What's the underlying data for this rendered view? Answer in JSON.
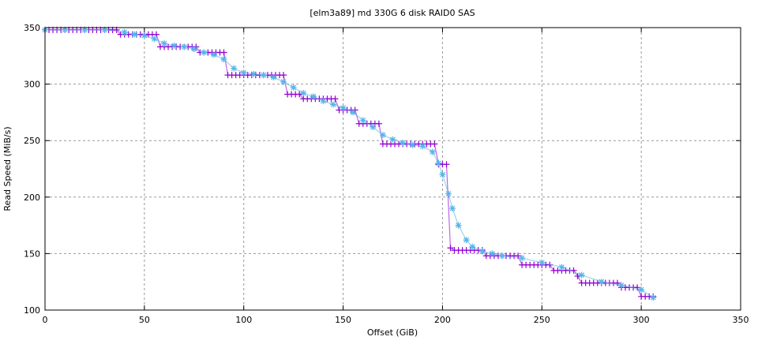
{
  "chart_data": {
    "type": "line",
    "title": "[elm3a89] md 330G 6 disk RAID0 SAS",
    "xlabel": "Offset (GiB)",
    "ylabel": "Read Speed (MiB/s)",
    "xlim": [
      0,
      350
    ],
    "ylim": [
      100,
      350
    ],
    "xticks": [
      "0",
      "50",
      "100",
      "150",
      "200",
      "250",
      "300",
      "350"
    ],
    "yticks": [
      "100",
      "150",
      "200",
      "250",
      "300",
      "350"
    ],
    "grid": true,
    "legend": "none",
    "series": [
      {
        "marker": "plus",
        "color": "#9400d3",
        "x": [
          0,
          2,
          4,
          6,
          8,
          10,
          12,
          14,
          16,
          18,
          20,
          22,
          24,
          26,
          28,
          30,
          32,
          34,
          36,
          38,
          40,
          42,
          44,
          46,
          48,
          50,
          52,
          54,
          56,
          58,
          60,
          62,
          64,
          66,
          68,
          70,
          72,
          74,
          76,
          78,
          80,
          82,
          84,
          86,
          88,
          90,
          92,
          94,
          96,
          98,
          100,
          102,
          104,
          106,
          108,
          110,
          112,
          114,
          116,
          118,
          120,
          122,
          124,
          126,
          128,
          130,
          132,
          134,
          136,
          138,
          140,
          142,
          144,
          146,
          148,
          150,
          152,
          154,
          156,
          158,
          160,
          162,
          164,
          166,
          168,
          170,
          172,
          174,
          176,
          178,
          180,
          182,
          184,
          186,
          188,
          190,
          192,
          194,
          196,
          198,
          200,
          202,
          204,
          206,
          208,
          210,
          212,
          214,
          216,
          218,
          220,
          222,
          224,
          226,
          228,
          230,
          232,
          234,
          236,
          238,
          240,
          242,
          244,
          246,
          248,
          250,
          252,
          254,
          256,
          258,
          260,
          262,
          264,
          266,
          268,
          270,
          272,
          274,
          276,
          278,
          280,
          282,
          284,
          286,
          288,
          290,
          292,
          294,
          296,
          298,
          300,
          302,
          304,
          306
        ],
        "y": [
          348,
          348,
          348,
          348,
          348,
          348,
          348,
          348,
          348,
          348,
          348,
          348,
          348,
          348,
          348,
          348,
          348,
          348,
          348,
          344,
          344,
          344,
          344,
          344,
          344,
          344,
          344,
          344,
          344,
          333,
          333,
          333,
          333,
          333,
          333,
          333,
          333,
          333,
          333,
          328,
          328,
          328,
          328,
          328,
          328,
          328,
          308,
          308,
          308,
          308,
          308,
          308,
          308,
          308,
          308,
          308,
          308,
          308,
          308,
          308,
          308,
          291,
          291,
          291,
          291,
          287,
          287,
          287,
          287,
          287,
          287,
          287,
          287,
          287,
          277,
          277,
          277,
          277,
          277,
          265,
          265,
          265,
          265,
          265,
          265,
          247,
          247,
          247,
          247,
          247,
          247,
          247,
          247,
          247,
          247,
          247,
          247,
          247,
          247,
          229,
          229,
          229,
          155,
          153,
          153,
          153,
          153,
          153,
          153,
          153,
          153,
          148,
          148,
          148,
          148,
          148,
          148,
          148,
          148,
          148,
          140,
          140,
          140,
          140,
          140,
          140,
          140,
          140,
          135,
          135,
          135,
          135,
          135,
          135,
          130,
          124,
          124,
          124,
          124,
          124,
          124,
          124,
          124,
          124,
          124,
          120,
          120,
          120,
          120,
          120,
          112,
          112,
          112,
          112
        ]
      },
      {
        "marker": "star",
        "color": "#56b4e9",
        "x": [
          0,
          10,
          20,
          30,
          40,
          45,
          50,
          55,
          60,
          65,
          70,
          75,
          80,
          85,
          90,
          95,
          100,
          105,
          110,
          115,
          120,
          125,
          130,
          135,
          140,
          145,
          150,
          155,
          160,
          165,
          170,
          175,
          180,
          185,
          190,
          195,
          198,
          200,
          203,
          205,
          208,
          212,
          215,
          220,
          225,
          230,
          240,
          250,
          260,
          270,
          280,
          290,
          300,
          306
        ],
        "y": [
          348,
          348,
          348,
          348,
          346,
          344,
          343,
          340,
          336,
          334,
          333,
          331,
          328,
          326,
          322,
          314,
          310,
          309,
          308,
          306,
          302,
          297,
          292,
          289,
          285,
          282,
          279,
          275,
          268,
          262,
          255,
          251,
          248,
          246,
          245,
          240,
          230,
          220,
          203,
          190,
          175,
          162,
          156,
          152,
          150,
          148,
          146,
          142,
          138,
          131,
          125,
          122,
          118,
          111
        ]
      }
    ]
  }
}
